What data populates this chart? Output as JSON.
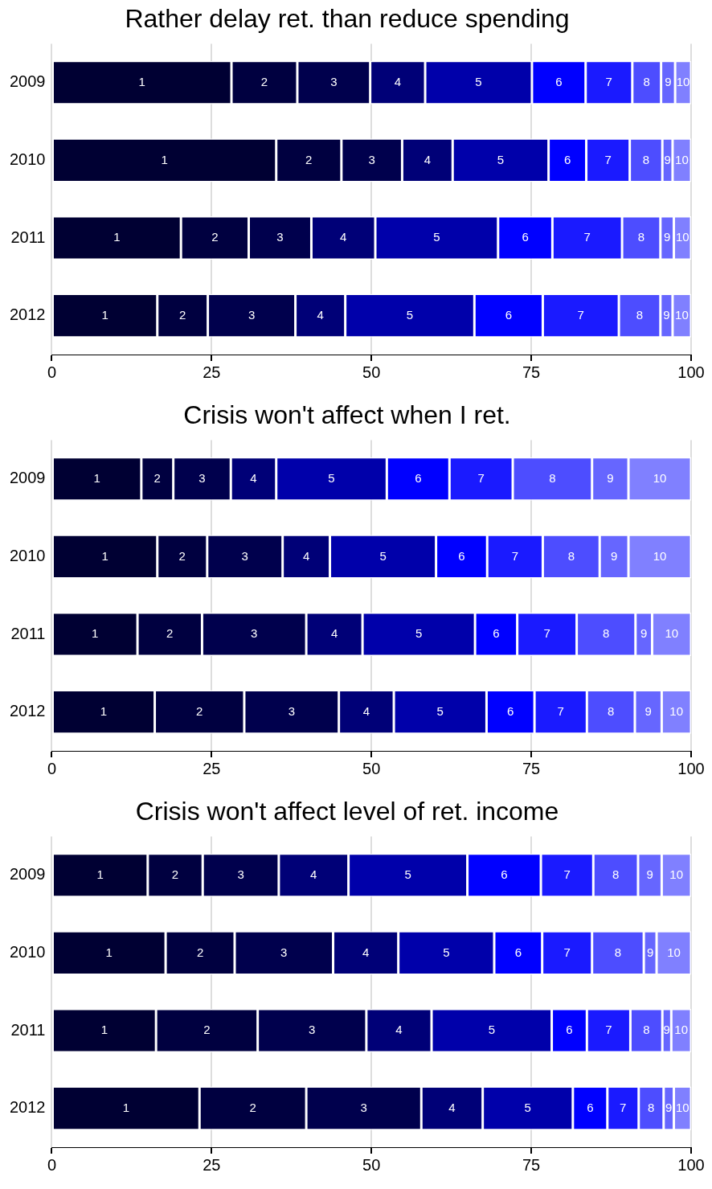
{
  "chart_data": [
    {
      "type": "bar",
      "orientation": "horizontal",
      "stacked": true,
      "grid": "x",
      "title": "Rather delay ret. than reduce spending",
      "categories": [
        "2009",
        "2010",
        "2011",
        "2012"
      ],
      "xlim": [
        0,
        100
      ],
      "xticks": [
        0,
        25,
        50,
        75,
        100
      ],
      "series": [
        {
          "name": "1",
          "color": "#000033",
          "values": [
            28.1,
            35.1,
            20.2,
            16.5
          ]
        },
        {
          "name": "2",
          "color": "#000040",
          "values": [
            10.3,
            10.2,
            10.6,
            7.9
          ]
        },
        {
          "name": "3",
          "color": "#00004d",
          "values": [
            11.4,
            9.5,
            9.8,
            13.7
          ]
        },
        {
          "name": "4",
          "color": "#000077",
          "values": [
            8.6,
            7.9,
            10.0,
            7.8
          ]
        },
        {
          "name": "5",
          "color": "#0000aa",
          "values": [
            16.7,
            15.0,
            19.2,
            20.2
          ]
        },
        {
          "name": "6",
          "color": "#0000ff",
          "values": [
            8.4,
            5.9,
            8.5,
            10.7
          ]
        },
        {
          "name": "7",
          "color": "#1a1aff",
          "values": [
            7.3,
            6.8,
            10.9,
            11.9
          ]
        },
        {
          "name": "8",
          "color": "#4d4dff",
          "values": [
            4.5,
            5.1,
            6.0,
            6.5
          ]
        },
        {
          "name": "9",
          "color": "#6666ff",
          "values": [
            2.2,
            1.6,
            2.1,
            1.9
          ]
        },
        {
          "name": "10",
          "color": "#8080ff",
          "values": [
            2.5,
            2.9,
            2.7,
            2.9
          ]
        }
      ]
    },
    {
      "type": "bar",
      "orientation": "horizontal",
      "stacked": true,
      "grid": "x",
      "title": "Crisis won't affect when I ret.",
      "categories": [
        "2009",
        "2010",
        "2011",
        "2012"
      ],
      "xlim": [
        0,
        100
      ],
      "xticks": [
        0,
        25,
        50,
        75,
        100
      ],
      "series": [
        {
          "name": "1",
          "color": "#000033",
          "values": [
            14.0,
            16.5,
            13.4,
            16.1
          ]
        },
        {
          "name": "2",
          "color": "#000040",
          "values": [
            5.0,
            7.8,
            10.1,
            14.0
          ]
        },
        {
          "name": "3",
          "color": "#00004d",
          "values": [
            9.0,
            11.8,
            16.3,
            14.8
          ]
        },
        {
          "name": "4",
          "color": "#000077",
          "values": [
            7.1,
            7.4,
            8.8,
            8.6
          ]
        },
        {
          "name": "5",
          "color": "#0000aa",
          "values": [
            17.3,
            16.6,
            17.6,
            14.5
          ]
        },
        {
          "name": "6",
          "color": "#0000ff",
          "values": [
            9.8,
            8.0,
            6.6,
            7.5
          ]
        },
        {
          "name": "7",
          "color": "#1a1aff",
          "values": [
            9.9,
            8.7,
            9.3,
            8.2
          ]
        },
        {
          "name": "8",
          "color": "#4d4dff",
          "values": [
            12.4,
            8.9,
            9.2,
            7.5
          ]
        },
        {
          "name": "9",
          "color": "#6666ff",
          "values": [
            5.7,
            4.5,
            2.6,
            4.2
          ]
        },
        {
          "name": "10",
          "color": "#8080ff",
          "values": [
            9.8,
            9.8,
            6.1,
            4.6
          ]
        }
      ]
    },
    {
      "type": "bar",
      "orientation": "horizontal",
      "stacked": true,
      "grid": "x",
      "title": "Crisis won't affect level of ret. income",
      "categories": [
        "2009",
        "2010",
        "2011",
        "2012"
      ],
      "xlim": [
        0,
        100
      ],
      "xticks": [
        0,
        25,
        50,
        75,
        100
      ],
      "series": [
        {
          "name": "1",
          "color": "#000033",
          "values": [
            15.0,
            17.8,
            16.3,
            23.1
          ]
        },
        {
          "name": "2",
          "color": "#000040",
          "values": [
            8.6,
            10.8,
            15.9,
            16.7
          ]
        },
        {
          "name": "3",
          "color": "#00004d",
          "values": [
            11.9,
            15.4,
            17.0,
            18.0
          ]
        },
        {
          "name": "4",
          "color": "#000077",
          "values": [
            10.9,
            10.2,
            10.2,
            9.6
          ]
        },
        {
          "name": "5",
          "color": "#0000aa",
          "values": [
            18.6,
            15.0,
            18.8,
            14.1
          ]
        },
        {
          "name": "6",
          "color": "#0000ff",
          "values": [
            11.5,
            7.5,
            5.5,
            5.4
          ]
        },
        {
          "name": "7",
          "color": "#1a1aff",
          "values": [
            8.2,
            7.8,
            6.8,
            4.9
          ]
        },
        {
          "name": "8",
          "color": "#4d4dff",
          "values": [
            7.0,
            8.1,
            5.0,
            3.9
          ]
        },
        {
          "name": "9",
          "color": "#6666ff",
          "values": [
            3.7,
            2.0,
            1.4,
            1.6
          ]
        },
        {
          "name": "10",
          "color": "#8080ff",
          "values": [
            4.6,
            5.4,
            3.1,
            2.7
          ]
        }
      ]
    }
  ]
}
